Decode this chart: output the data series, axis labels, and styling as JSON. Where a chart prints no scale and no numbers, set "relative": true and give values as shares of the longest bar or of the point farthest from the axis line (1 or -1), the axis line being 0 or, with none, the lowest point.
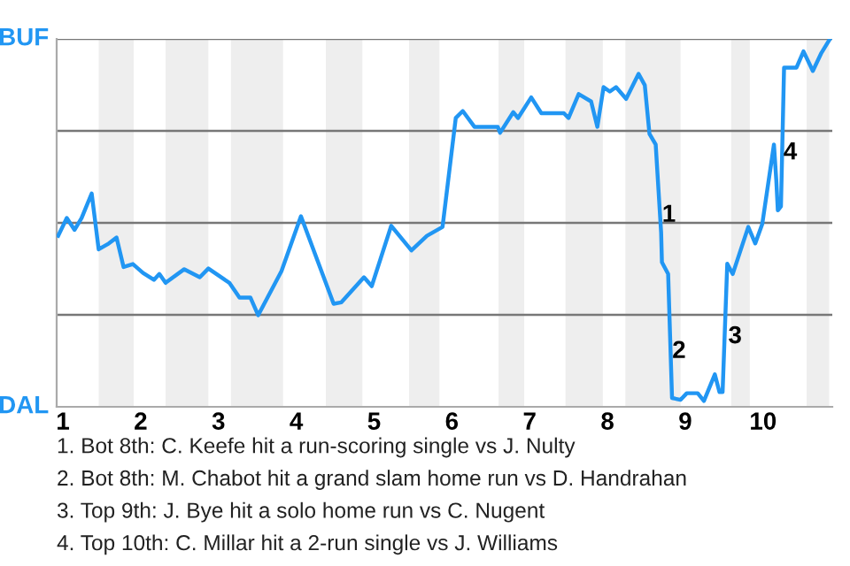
{
  "chart_data": {
    "type": "line",
    "x": [
      0.94,
      1.05,
      1.15,
      1.24,
      1.37,
      1.46,
      1.59,
      1.69,
      1.78,
      1.9,
      2.03,
      2.17,
      2.24,
      2.32,
      2.56,
      2.76,
      2.87,
      3.14,
      3.27,
      3.41,
      3.51,
      3.81,
      4.06,
      4.48,
      4.58,
      4.87,
      4.97,
      5.22,
      5.48,
      5.68,
      5.88,
      6.05,
      6.14,
      6.29,
      6.59,
      6.62,
      6.79,
      6.85,
      7.02,
      7.15,
      7.44,
      7.5,
      7.63,
      7.79,
      7.87,
      7.95,
      8.03,
      8.11,
      8.24,
      8.4,
      8.48,
      8.54,
      8.62,
      8.69,
      8.7,
      8.78,
      8.83,
      8.94,
      9.02,
      9.16,
      9.24,
      9.38,
      9.44,
      9.48,
      9.54,
      9.61,
      9.81,
      9.9,
      9.99,
      10.14,
      10.17,
      10.19,
      10.23,
      10.27,
      10.43,
      10.52,
      10.64,
      10.75,
      10.86
    ],
    "relative": true,
    "series": [
      {
        "color": "#2196f3",
        "values": [
          0.465,
          0.513,
          0.481,
          0.513,
          0.58,
          0.428,
          0.444,
          0.46,
          0.38,
          0.388,
          0.364,
          0.345,
          0.361,
          0.337,
          0.374,
          0.352,
          0.376,
          0.337,
          0.297,
          0.297,
          0.249,
          0.369,
          0.518,
          0.28,
          0.284,
          0.352,
          0.328,
          0.492,
          0.425,
          0.465,
          0.489,
          0.785,
          0.804,
          0.761,
          0.761,
          0.745,
          0.801,
          0.785,
          0.841,
          0.798,
          0.798,
          0.785,
          0.85,
          0.83,
          0.761,
          0.869,
          0.857,
          0.869,
          0.837,
          0.905,
          0.874,
          0.742,
          0.713,
          0.473,
          0.393,
          0.361,
          0.024,
          0.019,
          0.037,
          0.037,
          0.016,
          0.088,
          0.04,
          0.04,
          0.389,
          0.361,
          0.489,
          0.444,
          0.497,
          0.713,
          0.617,
          0.534,
          0.545,
          0.922,
          0.922,
          0.966,
          0.913,
          0.962,
          1
        ]
      }
    ],
    "xlim": [
      0.92,
      10.89
    ],
    "xticks": [
      1,
      2,
      3,
      4,
      5,
      6,
      7,
      8,
      9,
      10
    ],
    "tick_labels": "x",
    "ref_lines": [
      {
        "axis": "y",
        "value": 0.25,
        "color": "#777777"
      },
      {
        "axis": "y",
        "value": 0.5,
        "color": "#777777"
      },
      {
        "axis": "y",
        "value": 0.75,
        "color": "#777777"
      },
      {
        "axis": "y",
        "value": 1,
        "color": "#777777"
      }
    ],
    "bands": [
      {
        "axis": "x",
        "from": 1.46,
        "to": 1.91,
        "color": "#eeeeee"
      },
      {
        "axis": "x",
        "from": 2.32,
        "to": 2.87,
        "color": "#eeeeee"
      },
      {
        "axis": "x",
        "from": 3.16,
        "to": 3.83,
        "color": "#eeeeee"
      },
      {
        "axis": "x",
        "from": 4.38,
        "to": 4.85,
        "color": "#eeeeee"
      },
      {
        "axis": "x",
        "from": 5.45,
        "to": 5.84,
        "color": "#eeeeee"
      },
      {
        "axis": "x",
        "from": 6.6,
        "to": 6.93,
        "color": "#eeeeee"
      },
      {
        "axis": "x",
        "from": 7.46,
        "to": 7.94,
        "color": "#eeeeee"
      },
      {
        "axis": "x",
        "from": 8.23,
        "to": 8.94,
        "color": "#eeeeee"
      },
      {
        "axis": "x",
        "from": 9.59,
        "to": 9.83,
        "color": "#eeeeee"
      },
      {
        "axis": "x",
        "from": 10.56,
        "to": 10.85,
        "color": "#eeeeee"
      }
    ],
    "annotations": [
      "BUF",
      "DAL",
      {
        "text": "1",
        "x": 8.79,
        "y": 0.52
      },
      {
        "text": "2",
        "x": 8.92,
        "y": 0.15
      },
      {
        "text": "3",
        "x": 9.64,
        "y": 0.19
      },
      {
        "text": "4",
        "x": 10.35,
        "y": 0.69
      },
      "1. Bot 8th: C. Keefe hit a run-scoring single vs J. Nulty",
      "2. Bot 8th: M. Chabot hit a grand slam home run vs D. Handrahan",
      "3. Top 9th: J. Bye hit a solo home run vs C. Nugent",
      "4. Top 10th: C. Millar hit a 2-run single vs J. Williams"
    ],
    "marker": "none",
    "line_style": "solid"
  }
}
